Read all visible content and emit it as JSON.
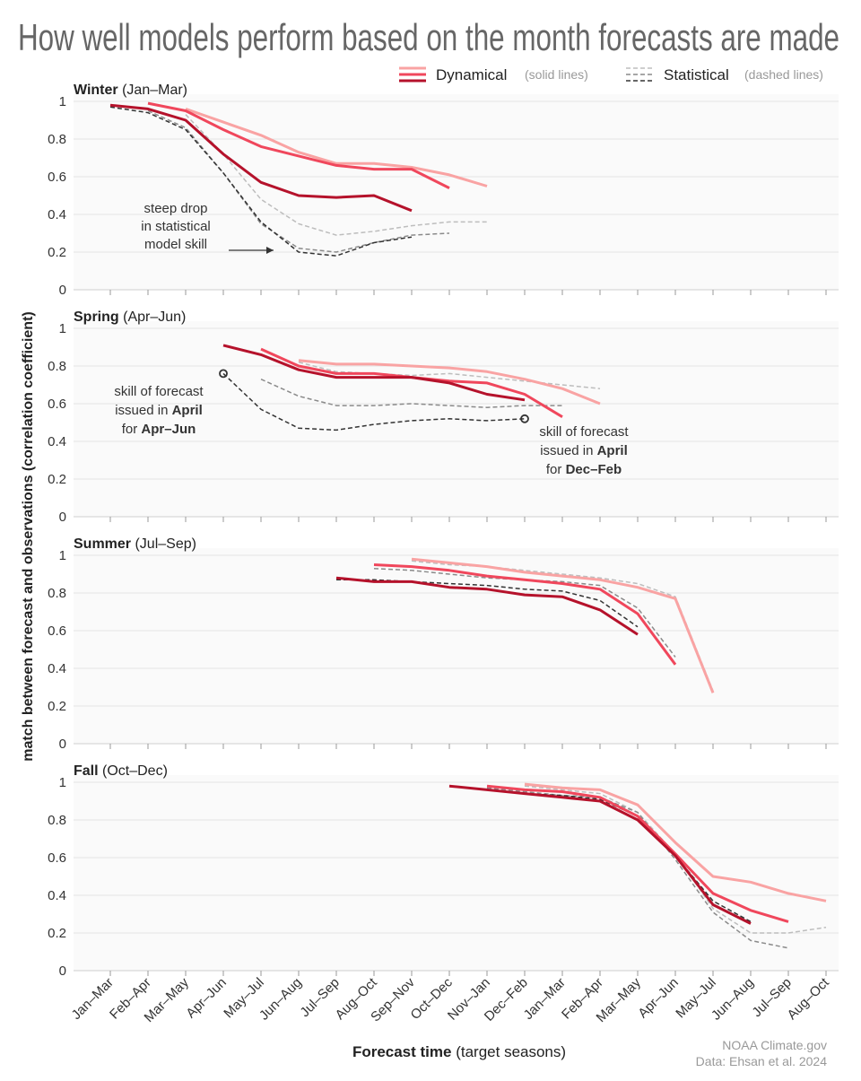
{
  "title": "How well models perform based on the month forecasts are made",
  "legend": {
    "dynamical": "Dynamical",
    "dynamical_note": "(solid lines)",
    "statistical": "Statistical",
    "statistical_note": "(dashed lines)"
  },
  "credit": [
    "NOAA Climate.gov",
    "Data: Ehsan et al. 2024"
  ],
  "colors": {
    "dyn": [
      "#b5122b",
      "#f0475c",
      "#f9a3a3"
    ],
    "stat": [
      "#333333",
      "#8a8a8a",
      "#bdbdbd"
    ]
  },
  "chart_data": {
    "type": "line",
    "ylabel": "match between forecast and observations (correlation coefficient)",
    "xlabel_bold": "Forecast time",
    "xlabel_rest": " (target seasons)",
    "categories": [
      "Jan–Mar",
      "Feb–Apr",
      "Mar–May",
      "Apr–Jun",
      "May–Jul",
      "Jun–Aug",
      "Jul–Sep",
      "Aug–Oct",
      "Sep–Nov",
      "Oct–Dec",
      "Nov–Jan",
      "Dec–Feb",
      "Jan–Mar",
      "Feb–Apr",
      "Mar–May",
      "Apr–Jun",
      "May–Jul",
      "Jun–Aug",
      "Jul–Sep",
      "Aug–Oct"
    ],
    "ylim": [
      0,
      1
    ],
    "yticks": [
      "0",
      "0.2",
      "0.4",
      "0.6",
      "0.8",
      "1"
    ],
    "grid": true,
    "legend_position": "top-right",
    "panels": [
      {
        "name": "Winter",
        "sub": " (Jan–Mar)",
        "dynamical": [
          {
            "start": "Jan–Mar",
            "values": [
              0.98,
              0.96,
              0.9,
              0.72,
              0.57,
              0.5,
              0.49,
              0.5,
              0.42
            ]
          },
          {
            "start": "Feb–Apr",
            "values": [
              0.99,
              0.95,
              0.85,
              0.76,
              0.71,
              0.66,
              0.64,
              0.64,
              0.54
            ]
          },
          {
            "start": "Mar–May",
            "values": [
              0.96,
              0.89,
              0.82,
              0.73,
              0.67,
              0.67,
              0.65,
              0.61,
              0.55
            ]
          }
        ],
        "statistical": [
          {
            "start": "Jan–Mar",
            "values": [
              0.97,
              0.94,
              0.85,
              0.62,
              0.36,
              0.2,
              0.18,
              0.25,
              0.28
            ]
          },
          {
            "start": "Feb–Apr",
            "values": [
              0.95,
              0.86,
              0.62,
              0.35,
              0.22,
              0.2,
              0.25,
              0.29,
              0.3
            ]
          },
          {
            "start": "Mar–May",
            "values": [
              0.93,
              0.72,
              0.48,
              0.35,
              0.29,
              0.31,
              0.34,
              0.36,
              0.36
            ]
          }
        ],
        "annotation": [
          "steep drop",
          "in statistical",
          "model skill"
        ]
      },
      {
        "name": "Spring",
        "sub": " (Apr–Jun)",
        "dynamical": [
          {
            "start": "Apr–Jun",
            "values": [
              0.91,
              0.86,
              0.78,
              0.74,
              0.74,
              0.74,
              0.71,
              0.65,
              0.62
            ]
          },
          {
            "start": "May–Jul",
            "values": [
              0.89,
              0.8,
              0.76,
              0.76,
              0.74,
              0.72,
              0.71,
              0.65,
              0.53
            ]
          },
          {
            "start": "Jun–Aug",
            "values": [
              0.83,
              0.81,
              0.81,
              0.8,
              0.79,
              0.77,
              0.73,
              0.68,
              0.6
            ]
          }
        ],
        "statistical": [
          {
            "start": "Apr–Jun",
            "values": [
              0.76,
              0.57,
              0.47,
              0.46,
              0.49,
              0.51,
              0.52,
              0.51,
              0.52
            ]
          },
          {
            "start": "May–Jul",
            "values": [
              0.73,
              0.64,
              0.59,
              0.59,
              0.6,
              0.59,
              0.58,
              0.59,
              0.59
            ]
          },
          {
            "start": "Jun–Aug",
            "values": [
              0.82,
              0.77,
              0.76,
              0.75,
              0.76,
              0.74,
              0.72,
              0.7,
              0.68
            ]
          }
        ],
        "annotation_left": {
          "l1": "skill of forecast",
          "l2a": "issued in ",
          "l2b": "April",
          "l3a": "for ",
          "l3b": "Apr–Jun"
        },
        "annotation_right": {
          "l1": "skill of forecast",
          "l2a": "issued in ",
          "l2b": "April",
          "l3a": "for ",
          "l3b": "Dec–Feb"
        }
      },
      {
        "name": "Summer",
        "sub": " (Jul–Sep)",
        "dynamical": [
          {
            "start": "Jul–Sep",
            "values": [
              0.88,
              0.86,
              0.86,
              0.83,
              0.82,
              0.79,
              0.78,
              0.71,
              0.58
            ]
          },
          {
            "start": "Aug–Oct",
            "values": [
              0.95,
              0.94,
              0.92,
              0.89,
              0.87,
              0.85,
              0.82,
              0.69,
              0.42
            ]
          },
          {
            "start": "Sep–Nov",
            "values": [
              0.98,
              0.96,
              0.94,
              0.91,
              0.89,
              0.87,
              0.83,
              0.77,
              0.27
            ]
          }
        ],
        "statistical": [
          {
            "start": "Jul–Sep",
            "values": [
              0.87,
              0.87,
              0.86,
              0.85,
              0.84,
              0.82,
              0.81,
              0.76,
              0.62
            ]
          },
          {
            "start": "Aug–Oct",
            "values": [
              0.93,
              0.92,
              0.9,
              0.88,
              0.87,
              0.86,
              0.84,
              0.72,
              0.46
            ]
          },
          {
            "start": "Sep–Nov",
            "values": [
              0.97,
              0.95,
              0.94,
              0.92,
              0.9,
              0.88,
              0.85,
              0.78,
              0.28
            ]
          }
        ]
      },
      {
        "name": "Fall",
        "sub": " (Oct–Dec)",
        "dynamical": [
          {
            "start": "Oct–Dec",
            "values": [
              0.98,
              0.96,
              0.94,
              0.92,
              0.9,
              0.8,
              0.61,
              0.35,
              0.25
            ]
          },
          {
            "start": "Nov–Jan",
            "values": [
              0.98,
              0.96,
              0.95,
              0.92,
              0.82,
              0.62,
              0.41,
              0.32,
              0.26
            ]
          },
          {
            "start": "Dec–Feb",
            "values": [
              0.99,
              0.97,
              0.96,
              0.88,
              0.68,
              0.5,
              0.47,
              0.41,
              0.37
            ]
          }
        ],
        "statistical": [
          {
            "start": "Oct–Dec",
            "values": [
              0.98,
              0.96,
              0.94,
              0.93,
              0.91,
              0.82,
              0.61,
              0.37,
              0.26
            ]
          },
          {
            "start": "Nov–Jan",
            "values": [
              0.97,
              0.95,
              0.93,
              0.92,
              0.84,
              0.59,
              0.31,
              0.16,
              0.12
            ]
          },
          {
            "start": "Dec–Feb",
            "values": [
              0.98,
              0.96,
              0.94,
              0.84,
              0.62,
              0.33,
              0.2,
              0.2,
              0.23
            ]
          }
        ]
      }
    ]
  }
}
